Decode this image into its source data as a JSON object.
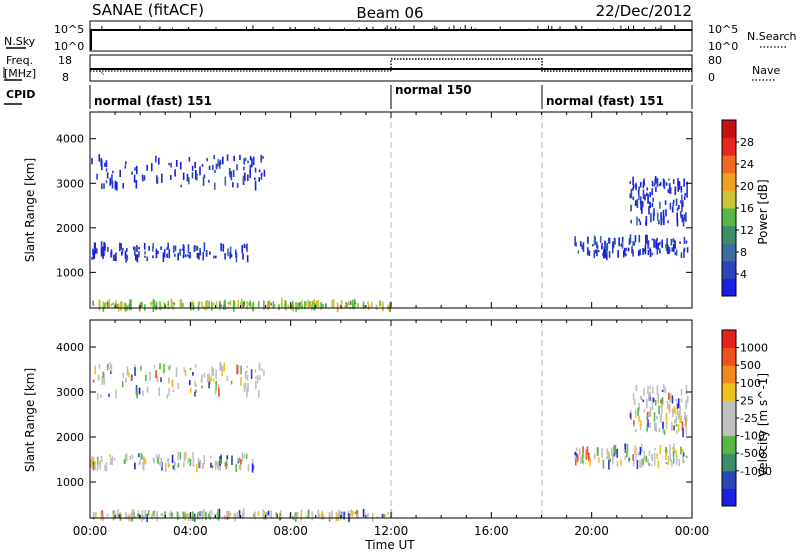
{
  "header": {
    "title": "SANAE (fitACF)",
    "beam": "Beam 06",
    "date": "22/Dec/2012"
  },
  "status_panel": {
    "nsky_label": "N.Sky",
    "nsearch_label": "N.Search",
    "left_ticks": [
      "10^5",
      "10^0"
    ],
    "right_ticks": [
      "10^5",
      "10^0"
    ],
    "freq_label_line1": "Freq.",
    "freq_label_line2": "[MHz]",
    "freq_ticks": [
      "18",
      "8"
    ],
    "nave_label": "Nave",
    "nave_ticks": [
      "80",
      "0"
    ],
    "cpid_label": "CPID",
    "modes": [
      {
        "label": "normal (fast) 151",
        "start_h": 0,
        "end_h": 12
      },
      {
        "label": "normal 150",
        "start_h": 12,
        "end_h": 18
      },
      {
        "label": "normal (fast) 151",
        "start_h": 18,
        "end_h": 24
      }
    ]
  },
  "chart_data": [
    {
      "type": "heatmap",
      "title": "",
      "xlabel": "Time UT",
      "ylabel": "Slant Range [km]",
      "x_ticks": [
        "00:00",
        "04:00",
        "08:00",
        "12:00",
        "16:00",
        "20:00",
        "00:00"
      ],
      "xlim_hours": [
        0,
        24
      ],
      "y_ticks": [
        1000,
        2000,
        3000,
        4000
      ],
      "ylim": [
        200,
        4600
      ],
      "colorbar": {
        "label": "Power [dB]",
        "ticks": [
          4,
          8,
          12,
          16,
          20,
          24,
          28
        ],
        "range": [
          0,
          32
        ],
        "colors": [
          "#1a20e0",
          "#2a45b8",
          "#3a6ea0",
          "#3a8f6a",
          "#57b843",
          "#c9c43a",
          "#f0a020",
          "#f06a1e",
          "#e8281e",
          "#c81010"
        ]
      },
      "bands": [
        {
          "x": [
            0.0,
            6.5
          ],
          "y": [
            1300,
            1600
          ],
          "level": 0.05
        },
        {
          "x": [
            0.0,
            7.0
          ],
          "y": [
            2900,
            3600
          ],
          "level": 0.06
        },
        {
          "x": [
            0.0,
            12.0
          ],
          "y": [
            200,
            320
          ],
          "level": 0.45
        },
        {
          "x": [
            19.3,
            23.8
          ],
          "y": [
            1380,
            1760
          ],
          "level": 0.06
        },
        {
          "x": [
            21.5,
            23.8
          ],
          "y": [
            2100,
            3100
          ],
          "level": 0.05
        }
      ]
    },
    {
      "type": "heatmap",
      "title": "",
      "xlabel": "Time UT",
      "ylabel": "Slant Range [km]",
      "x_ticks": [
        "00:00",
        "04:00",
        "08:00",
        "12:00",
        "16:00",
        "20:00",
        "00:00"
      ],
      "xlim_hours": [
        0,
        24
      ],
      "y_ticks": [
        1000,
        2000,
        3000,
        4000
      ],
      "ylim": [
        200,
        4600
      ],
      "colorbar": {
        "label": "Velocity [m s^-1]",
        "ticks": [
          "1000",
          "500",
          "100",
          "25",
          "-25",
          "-100",
          "-500",
          "-1000"
        ],
        "range": [
          -1200,
          1200
        ],
        "colors": [
          "#1a20e0",
          "#2a45b8",
          "#3a8f6a",
          "#57b843",
          "#c0c0c0",
          "#c0c0c0",
          "#f0c020",
          "#f08a20",
          "#f0501e",
          "#e8201e"
        ]
      },
      "bands": [
        {
          "x": [
            0.0,
            6.5
          ],
          "y": [
            1300,
            1600
          ],
          "level": 0.5
        },
        {
          "x": [
            0.0,
            7.0
          ],
          "y": [
            2900,
            3600
          ],
          "level": 0.5
        },
        {
          "x": [
            0.0,
            12.0
          ],
          "y": [
            200,
            320
          ],
          "level": 0.3
        },
        {
          "x": [
            19.3,
            23.8
          ],
          "y": [
            1380,
            1760
          ],
          "level": 0.5
        },
        {
          "x": [
            21.5,
            23.8
          ],
          "y": [
            2100,
            3100
          ],
          "level": 0.5
        }
      ]
    }
  ]
}
